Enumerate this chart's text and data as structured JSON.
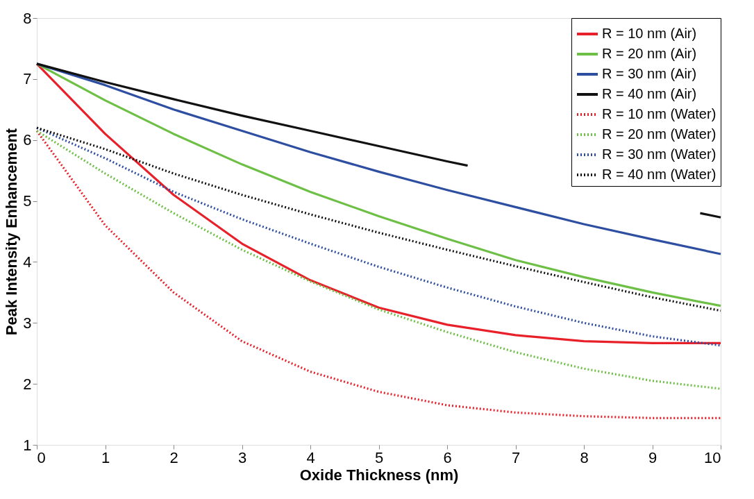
{
  "chart_data": {
    "type": "line",
    "xlabel": "Oxide Thickness (nm)",
    "ylabel": "Peak Intensity Enhancement",
    "x": [
      0,
      1,
      2,
      3,
      4,
      5,
      6,
      7,
      8,
      9,
      10
    ],
    "xlim": [
      0,
      10
    ],
    "xticks": [
      0,
      1,
      2,
      3,
      4,
      5,
      6,
      7,
      8,
      9,
      10
    ],
    "ylim": [
      1,
      8
    ],
    "yticks": [
      1,
      2,
      3,
      4,
      5,
      6,
      7,
      8
    ],
    "grid": false,
    "legend": "top right",
    "series": [
      {
        "name": "R = 10 nm (Air)",
        "color": "#e8202a",
        "line_style": "solid",
        "values": [
          7.25,
          6.1,
          5.1,
          4.3,
          3.7,
          3.25,
          2.97,
          2.8,
          2.7,
          2.67,
          2.67
        ]
      },
      {
        "name": "R = 20 nm (Air)",
        "color": "#6dbf45",
        "line_style": "solid",
        "values": [
          7.25,
          6.65,
          6.1,
          5.6,
          5.15,
          4.75,
          4.38,
          4.03,
          3.75,
          3.5,
          3.28
        ]
      },
      {
        "name": "R = 30 nm (Air)",
        "color": "#2e4ea1",
        "line_style": "solid",
        "values": [
          7.25,
          6.9,
          6.5,
          6.15,
          5.8,
          5.48,
          5.18,
          4.9,
          4.62,
          4.37,
          4.13
        ]
      },
      {
        "name": "R = 40 nm (Air)",
        "color": "#111111",
        "line_style": "solid",
        "x": [
          0,
          1,
          2,
          3,
          4,
          5,
          6,
          6.3,
          8,
          9.7,
          10
        ],
        "values": [
          7.25,
          6.95,
          6.67,
          6.4,
          6.15,
          5.9,
          5.65,
          5.58,
          null,
          4.8,
          4.73
        ]
      },
      {
        "name": "R = 10 nm (Water)",
        "color": "#e8202a",
        "line_style": "dotted",
        "values": [
          6.15,
          4.6,
          3.5,
          2.7,
          2.2,
          1.87,
          1.65,
          1.53,
          1.47,
          1.44,
          1.44
        ]
      },
      {
        "name": "R = 20 nm (Water)",
        "color": "#6dbf45",
        "line_style": "dotted",
        "values": [
          6.15,
          5.45,
          4.8,
          4.2,
          3.68,
          3.22,
          2.85,
          2.52,
          2.25,
          2.05,
          1.92
        ]
      },
      {
        "name": "R = 30 nm (Water)",
        "color": "#2e4ea1",
        "line_style": "dotted",
        "values": [
          6.2,
          5.7,
          5.15,
          4.7,
          4.3,
          3.92,
          3.58,
          3.27,
          3.0,
          2.78,
          2.63
        ]
      },
      {
        "name": "R = 40 nm (Water)",
        "color": "#111111",
        "line_style": "dotted",
        "values": [
          6.2,
          5.85,
          5.45,
          5.1,
          4.78,
          4.48,
          4.2,
          3.93,
          3.67,
          3.42,
          3.2
        ]
      }
    ]
  }
}
